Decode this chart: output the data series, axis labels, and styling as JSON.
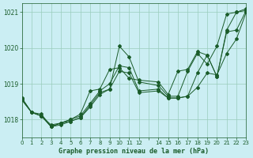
{
  "title": "Graphe pression niveau de la mer (hPa)",
  "background_color": "#cbeef3",
  "grid_color": "#99ccbb",
  "line_color": "#1a5c2a",
  "xlim": [
    0,
    23
  ],
  "ylim": [
    1017.5,
    1021.25
  ],
  "yticks": [
    1018,
    1019,
    1020,
    1021
  ],
  "xtick_labels": [
    "0",
    "1",
    "2",
    "3",
    "4",
    "5",
    "6",
    "7",
    "8",
    "9",
    "10",
    "11",
    "12",
    "",
    "14",
    "15",
    "16",
    "17",
    "18",
    "19",
    "20",
    "21",
    "22",
    "23"
  ],
  "figsize": [
    3.2,
    2.0
  ],
  "dpi": 100,
  "series": [
    {
      "x": [
        0,
        1,
        2,
        3,
        4,
        5,
        6,
        7,
        8,
        9,
        10,
        11,
        12,
        14,
        15,
        16,
        17,
        18,
        19,
        20,
        21,
        22,
        23
      ],
      "y": [
        1018.6,
        1018.2,
        1018.1,
        1017.8,
        1017.85,
        1017.95,
        1018.05,
        1018.35,
        1018.7,
        1018.85,
        1020.05,
        1019.75,
        1019.05,
        1018.95,
        1018.65,
        1018.65,
        1019.35,
        1019.85,
        1019.55,
        1020.05,
        1020.95,
        1021.0,
        1021.1
      ]
    },
    {
      "x": [
        0,
        1,
        2,
        3,
        4,
        5,
        6,
        7,
        8,
        9,
        10,
        11,
        12,
        14,
        15,
        16,
        17,
        18,
        19,
        20,
        21,
        22,
        23
      ],
      "y": [
        1018.55,
        1018.2,
        1018.15,
        1017.8,
        1017.9,
        1018.0,
        1018.1,
        1018.45,
        1018.8,
        1019.0,
        1019.5,
        1019.45,
        1018.8,
        1018.85,
        1018.6,
        1018.6,
        1018.65,
        1019.3,
        1019.8,
        1019.2,
        1020.45,
        1020.5,
        1021.05
      ]
    },
    {
      "x": [
        0,
        1,
        2,
        3,
        4,
        5,
        6,
        7,
        8,
        9,
        10,
        11,
        12,
        14,
        15,
        16,
        17,
        18,
        19,
        20,
        21,
        22,
        23
      ],
      "y": [
        1018.55,
        1018.2,
        1018.1,
        1017.8,
        1017.9,
        1017.95,
        1018.05,
        1018.4,
        1018.75,
        1018.85,
        1019.35,
        1019.3,
        1018.75,
        1018.8,
        1018.6,
        1018.6,
        1018.65,
        1018.9,
        1019.3,
        1019.25,
        1019.85,
        1020.25,
        1021.0
      ]
    },
    {
      "x": [
        0,
        1,
        2,
        3,
        4,
        5,
        6,
        7,
        8,
        9,
        10,
        11,
        12,
        14,
        15,
        16,
        17,
        18,
        19,
        20,
        21,
        22,
        23
      ],
      "y": [
        1018.6,
        1018.2,
        1018.1,
        1017.85,
        1017.9,
        1018.0,
        1018.15,
        1018.8,
        1018.85,
        1019.4,
        1019.45,
        1019.15,
        1019.1,
        1019.05,
        1018.7,
        1019.35,
        1019.4,
        1019.9,
        1019.8,
        1019.2,
        1020.5,
        1021.0,
        1021.05
      ]
    }
  ]
}
